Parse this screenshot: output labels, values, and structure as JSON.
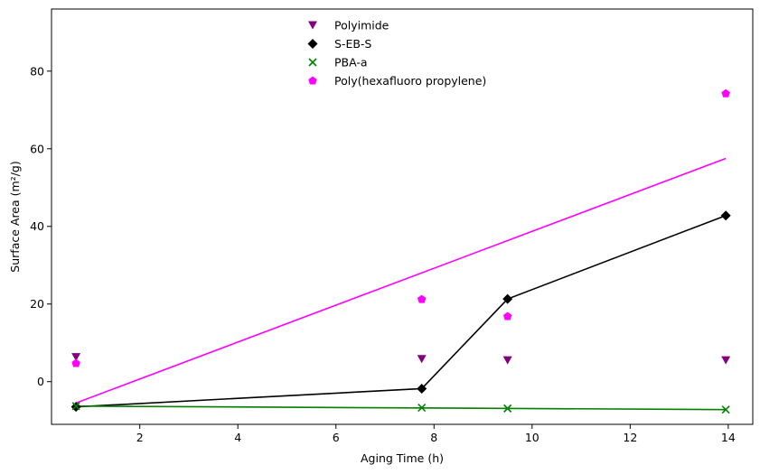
{
  "chart_data": {
    "type": "scatter",
    "xlabel": "Aging Time (h)",
    "ylabel": "Surface Area (m²/g)",
    "xlim": [
      0.2,
      14.5
    ],
    "ylim": [
      -11,
      96
    ],
    "x_ticks": [
      2,
      4,
      6,
      8,
      10,
      12,
      14
    ],
    "y_ticks": [
      0,
      20,
      40,
      60,
      80
    ],
    "grid": false,
    "legend_position": "top-center",
    "series": [
      {
        "name": "Polyimide",
        "marker": "triangle-down",
        "color": "#800080",
        "x": [
          0.7,
          7.75,
          9.5,
          13.95
        ],
        "y": [
          6.3,
          5.8,
          5.5,
          5.5
        ]
      },
      {
        "name": "S-EB-S",
        "marker": "diamond",
        "color": "#000000",
        "x": [
          0.7,
          7.75,
          9.5,
          13.95
        ],
        "y": [
          -6.5,
          -1.8,
          21.3,
          42.8
        ],
        "line": {
          "color": "#000000",
          "x": [
            0.7,
            7.75,
            9.5,
            13.95
          ],
          "y": [
            -6.5,
            -1.8,
            21.3,
            42.8
          ]
        }
      },
      {
        "name": "PBA-a",
        "marker": "x",
        "color": "#008000",
        "x": [
          0.7,
          7.75,
          9.5,
          13.95
        ],
        "y": [
          -6.3,
          -6.7,
          -6.9,
          -7.2
        ],
        "line": {
          "color": "#008000",
          "x": [
            0.7,
            13.95
          ],
          "y": [
            -6.3,
            -7.2
          ]
        }
      },
      {
        "name": "Poly(hexafluoro propylene)",
        "marker": "pentagon",
        "color": "#ff00ff",
        "x": [
          0.7,
          7.75,
          9.5,
          13.95
        ],
        "y": [
          4.7,
          21.2,
          16.8,
          74.2
        ],
        "line": {
          "color": "#ff00ff",
          "x": [
            0.7,
            13.95
          ],
          "y": [
            -5.5,
            57.5
          ]
        }
      }
    ]
  }
}
